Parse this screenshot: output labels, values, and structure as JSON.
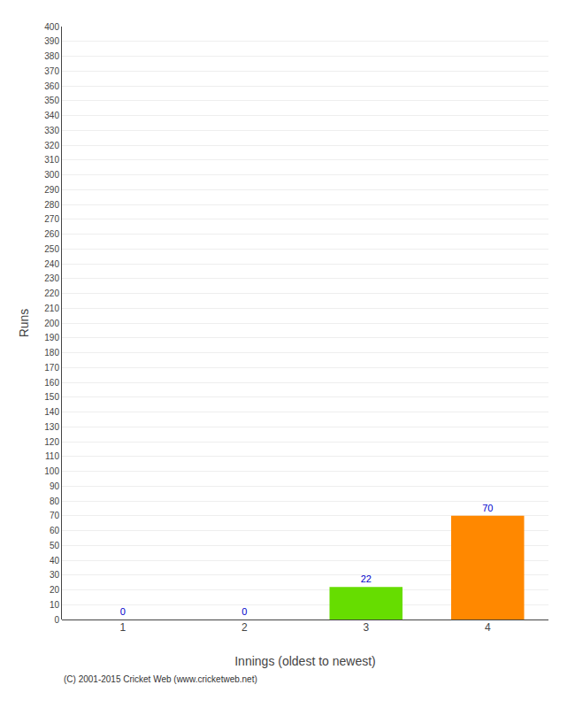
{
  "chart_data": {
    "type": "bar",
    "categories": [
      "1",
      "2",
      "3",
      "4"
    ],
    "values": [
      0,
      0,
      22,
      70
    ],
    "colors": [
      "#4488ff",
      "#4488ff",
      "#66dd00",
      "#ff8800"
    ],
    "xlabel": "Innings (oldest to newest)",
    "ylabel": "Runs",
    "ylim": [
      0,
      400
    ],
    "yticks": [
      0,
      10,
      20,
      30,
      40,
      50,
      60,
      70,
      80,
      90,
      100,
      110,
      120,
      130,
      140,
      150,
      160,
      170,
      180,
      190,
      200,
      210,
      220,
      230,
      240,
      250,
      260,
      270,
      280,
      290,
      300,
      310,
      320,
      330,
      340,
      350,
      360,
      370,
      380,
      390,
      400
    ],
    "grid": true,
    "data_labels": true,
    "annotations": [
      "(C) 2001-2015 Cricket Web (www.cricketweb.net)"
    ]
  }
}
